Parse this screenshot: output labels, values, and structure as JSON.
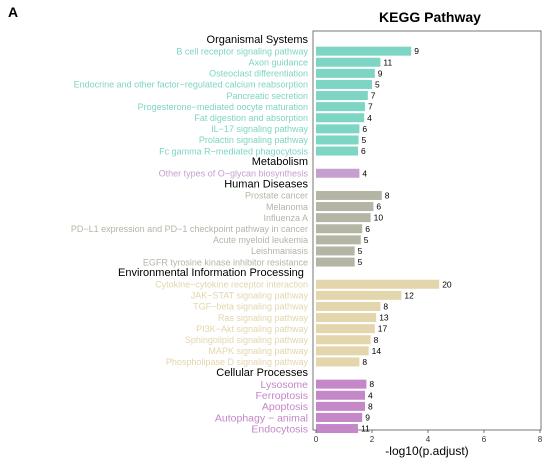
{
  "panel_letter": "A",
  "chart_data": {
    "type": "bar",
    "orientation": "horizontal",
    "title": "KEGG Pathway",
    "xlabel": "-log10(p.adjust)",
    "ylabel": "",
    "xlim": [
      0,
      8
    ],
    "xticks": [
      "0",
      "2",
      "4",
      "6",
      "8"
    ],
    "grid": false,
    "colors": {
      "Organismal Systems": "#7dd5c3",
      "Metabolism": "#c69fd0",
      "Human Diseases": "#b5b5a6",
      "Environmental Information Processing": "#e3d6ac",
      "Cellular Processes": "#c487c8"
    },
    "groups": [
      {
        "name": "Organismal Systems",
        "items": [
          {
            "label": "B cell receptor signaling pathway",
            "value": 3.4,
            "count": "9"
          },
          {
            "label": "Axon guidance",
            "value": 2.3,
            "count": "11"
          },
          {
            "label": "Osteoclast differentiation",
            "value": 2.1,
            "count": "9"
          },
          {
            "label": "Endocrine and other factor−regulated calcium reabsorption",
            "value": 2.0,
            "count": "5"
          },
          {
            "label": "Pancreatic secretion",
            "value": 1.85,
            "count": "7"
          },
          {
            "label": "Progesterone−mediated oocyte maturation",
            "value": 1.75,
            "count": "7"
          },
          {
            "label": "Fat digestion and absorption",
            "value": 1.72,
            "count": "4"
          },
          {
            "label": "IL−17 signaling pathway",
            "value": 1.55,
            "count": "6"
          },
          {
            "label": "Prolactin signaling pathway",
            "value": 1.52,
            "count": "5"
          },
          {
            "label": "Fc gamma R−mediated phagocytosis",
            "value": 1.5,
            "count": "6"
          }
        ]
      },
      {
        "name": "Metabolism",
        "items": [
          {
            "label": "Other types of O−glycan biosynthesis",
            "value": 1.55,
            "count": "4"
          }
        ]
      },
      {
        "name": "Human Diseases",
        "items": [
          {
            "label": "Prostate cancer",
            "value": 2.35,
            "count": "8"
          },
          {
            "label": "Melanoma",
            "value": 2.05,
            "count": "6"
          },
          {
            "label": "Influenza A",
            "value": 1.95,
            "count": "10"
          },
          {
            "label": "PD−L1 expression and PD−1 checkpoint pathway in cancer",
            "value": 1.65,
            "count": "6"
          },
          {
            "label": "Acute myeloid leukemia",
            "value": 1.6,
            "count": "5"
          },
          {
            "label": "Leishmaniasis",
            "value": 1.38,
            "count": "5"
          },
          {
            "label": "EGFR tyrosine kinase inhibitor resistance",
            "value": 1.38,
            "count": "5"
          }
        ]
      },
      {
        "name": "Environmental Information Processing",
        "items": [
          {
            "label": "Cytokine−cytokine receptor interaction",
            "value": 4.4,
            "count": "20"
          },
          {
            "label": "JAK−STAT signaling pathway",
            "value": 3.05,
            "count": "12"
          },
          {
            "label": "TGF−beta signaling pathway",
            "value": 2.3,
            "count": "8"
          },
          {
            "label": "Ras signaling pathway",
            "value": 2.15,
            "count": "13"
          },
          {
            "label": "PI3K−Akt signaling pathway",
            "value": 2.1,
            "count": "17"
          },
          {
            "label": "Sphingolipid signaling pathway",
            "value": 1.95,
            "count": "8"
          },
          {
            "label": "MAPK signaling pathway",
            "value": 1.88,
            "count": "14"
          },
          {
            "label": "Phospholipase D signaling pathway",
            "value": 1.55,
            "count": "8"
          }
        ]
      },
      {
        "name": "Cellular Processes",
        "items": [
          {
            "label": "Lysosome",
            "value": 1.8,
            "count": "8"
          },
          {
            "label": "Ferroptosis",
            "value": 1.75,
            "count": "4"
          },
          {
            "label": "Apoptosis",
            "value": 1.75,
            "count": "8"
          },
          {
            "label": "Autophagy − animal",
            "value": 1.65,
            "count": "9"
          },
          {
            "label": "Endocytosis",
            "value": 1.5,
            "count": "11"
          }
        ]
      }
    ]
  }
}
